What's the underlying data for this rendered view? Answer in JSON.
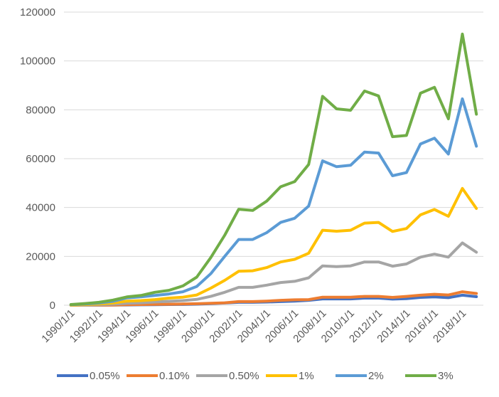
{
  "chart_data": {
    "type": "line",
    "title": "",
    "xlabel": "",
    "ylabel": "",
    "ylim": [
      0,
      120000
    ],
    "y_ticks": [
      0,
      20000,
      40000,
      60000,
      80000,
      100000,
      120000
    ],
    "y_tick_labels": [
      "0",
      "20000",
      "40000",
      "60000",
      "80000",
      "100000",
      "120000"
    ],
    "x": [
      "1990/1/1",
      "1991/1/1",
      "1992/1/1",
      "1993/1/1",
      "1994/1/1",
      "1995/1/1",
      "1996/1/1",
      "1997/1/1",
      "1998/1/1",
      "1999/1/1",
      "2000/1/1",
      "2001/1/1",
      "2002/1/1",
      "2003/1/1",
      "2004/1/1",
      "2005/1/1",
      "2006/1/1",
      "2007/1/1",
      "2008/1/1",
      "2009/1/1",
      "2010/1/1",
      "2011/1/1",
      "2012/1/1",
      "2013/1/1",
      "2014/1/1",
      "2015/1/1",
      "2016/1/1",
      "2017/1/1",
      "2018/1/1",
      "2019/1/1"
    ],
    "x_tick_labels": [
      "1990/1/1",
      "1992/1/1",
      "1994/1/1",
      "1996/1/1",
      "1998/1/1",
      "2000/1/1",
      "2002/1/1",
      "2004/1/1",
      "2006/1/1",
      "2008/1/1",
      "2010/1/1",
      "2012/1/1",
      "2014/1/1",
      "2016/1/1",
      "2018/1/1"
    ],
    "grid": true,
    "legend_position": "bottom",
    "series": [
      {
        "name": "0.05%",
        "color": "#4472C4",
        "values": [
          0,
          20,
          40,
          80,
          120,
          180,
          230,
          280,
          330,
          450,
          650,
          900,
          1200,
          1200,
          1300,
          1500,
          1700,
          2000,
          2600,
          2600,
          2600,
          2900,
          2900,
          2500,
          2700,
          3200,
          3400,
          3100,
          4100,
          3500
        ]
      },
      {
        "name": "0.10%",
        "color": "#ED7D31",
        "values": [
          0,
          30,
          60,
          100,
          200,
          280,
          350,
          420,
          500,
          600,
          800,
          1000,
          1500,
          1500,
          1700,
          2000,
          2200,
          2300,
          3300,
          3300,
          3300,
          3600,
          3600,
          3200,
          3600,
          4100,
          4500,
          4200,
          5500,
          4800
        ]
      },
      {
        "name": "0.50%",
        "color": "#A5A5A5",
        "values": [
          50,
          100,
          200,
          400,
          800,
          1000,
          1300,
          1600,
          1900,
          2400,
          3600,
          5300,
          7300,
          7300,
          8200,
          9300,
          9800,
          11200,
          16100,
          15800,
          16100,
          17700,
          17700,
          16000,
          16900,
          19700,
          20900,
          19700,
          25500,
          21700
        ]
      },
      {
        "name": "1%",
        "color": "#FFC000",
        "values": [
          100,
          250,
          500,
          900,
          1700,
          1900,
          2300,
          2900,
          3300,
          4200,
          7000,
          10200,
          13900,
          14100,
          15400,
          17700,
          18800,
          21300,
          30700,
          30300,
          30700,
          33600,
          33900,
          30200,
          31400,
          37000,
          39200,
          36400,
          47800,
          39600
        ]
      },
      {
        "name": "2%",
        "color": "#5B9BD5",
        "values": [
          200,
          500,
          900,
          1600,
          3000,
          3400,
          4000,
          4600,
          5500,
          7700,
          12900,
          20000,
          26900,
          26900,
          29700,
          33900,
          35600,
          40600,
          59100,
          56700,
          57300,
          62700,
          62300,
          53000,
          54300,
          66000,
          68400,
          61900,
          84500,
          65100
        ]
      },
      {
        "name": "3%",
        "color": "#70AD47",
        "values": [
          300,
          700,
          1200,
          2100,
          3400,
          4000,
          5300,
          6100,
          7900,
          11500,
          19500,
          28700,
          39300,
          38800,
          42600,
          48500,
          50600,
          57600,
          85500,
          80400,
          79800,
          87700,
          85700,
          69000,
          69500,
          86800,
          89200,
          76300,
          111000,
          78200
        ]
      }
    ]
  }
}
